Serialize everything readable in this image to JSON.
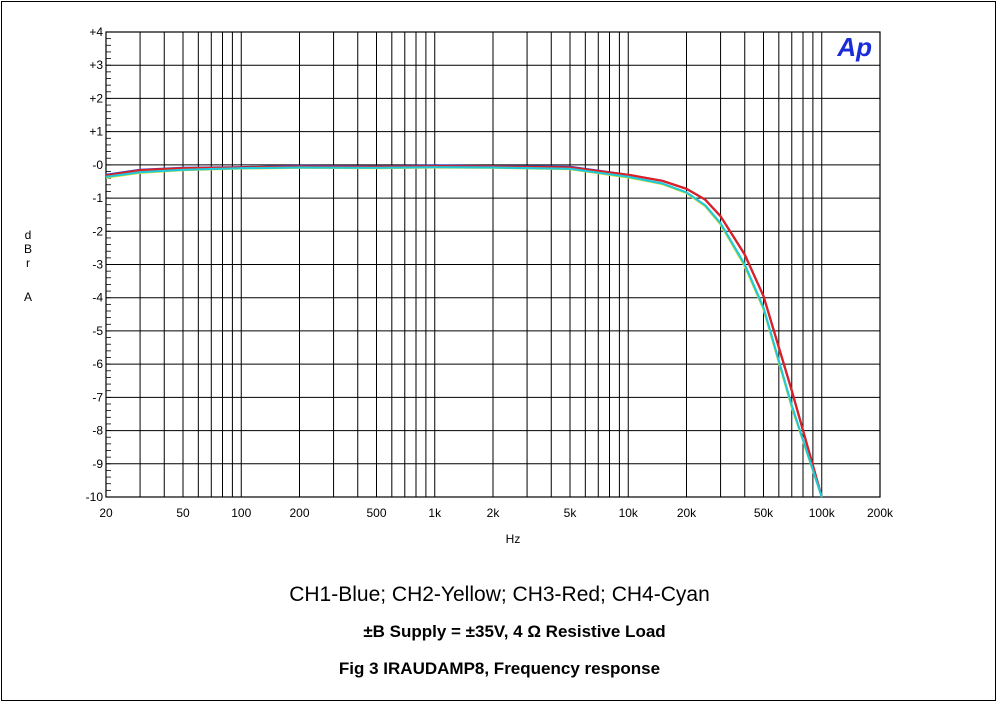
{
  "chart_data": {
    "type": "line",
    "x_scale": "log",
    "xlim": [
      20,
      200000
    ],
    "ylim": [
      -10,
      4
    ],
    "xlabel": "Hz",
    "ylabel_lines": [
      "d",
      "B",
      "r",
      "",
      "A"
    ],
    "x_ticks": [
      {
        "value": 20,
        "label": "20"
      },
      {
        "value": 50,
        "label": "50"
      },
      {
        "value": 100,
        "label": "100"
      },
      {
        "value": 200,
        "label": "200"
      },
      {
        "value": 500,
        "label": "500"
      },
      {
        "value": 1000,
        "label": "1k"
      },
      {
        "value": 2000,
        "label": "2k"
      },
      {
        "value": 5000,
        "label": "5k"
      },
      {
        "value": 10000,
        "label": "10k"
      },
      {
        "value": 20000,
        "label": "20k"
      },
      {
        "value": 50000,
        "label": "50k"
      },
      {
        "value": 100000,
        "label": "100k"
      },
      {
        "value": 200000,
        "label": "200k"
      }
    ],
    "y_ticks": [
      {
        "value": 4,
        "label": "+4"
      },
      {
        "value": 3,
        "label": "+3"
      },
      {
        "value": 2,
        "label": "+2"
      },
      {
        "value": 1,
        "label": "+1"
      },
      {
        "value": 0,
        "label": "-0"
      },
      {
        "value": -1,
        "label": "-1"
      },
      {
        "value": -2,
        "label": "-2"
      },
      {
        "value": -3,
        "label": "-3"
      },
      {
        "value": -4,
        "label": "-4"
      },
      {
        "value": -5,
        "label": "-5"
      },
      {
        "value": -6,
        "label": "-6"
      },
      {
        "value": -7,
        "label": "-7"
      },
      {
        "value": -8,
        "label": "-8"
      },
      {
        "value": -9,
        "label": "-9"
      },
      {
        "value": -10,
        "label": "-10"
      }
    ],
    "grid": true,
    "logo_text": "Ap",
    "series": [
      {
        "color": "#1f3fd6",
        "x": [
          20,
          30,
          50,
          100,
          200,
          500,
          1000,
          2000,
          5000,
          10000,
          15000,
          20000,
          25000,
          30000,
          40000,
          50000,
          70000,
          100000
        ],
        "y": [
          -0.3,
          -0.15,
          -0.09,
          -0.07,
          -0.03,
          -0.05,
          -0.02,
          -0.04,
          -0.06,
          -0.3,
          -0.48,
          -0.72,
          -1.05,
          -1.55,
          -2.7,
          -3.95,
          -6.8,
          -10.0
        ]
      },
      {
        "color": "#e0e030",
        "x": [
          20,
          30,
          50,
          100,
          200,
          500,
          1000,
          2000,
          5000,
          10000,
          15000,
          20000,
          25000,
          30000,
          40000,
          50000,
          70000,
          100000
        ],
        "y": [
          -0.38,
          -0.24,
          -0.16,
          -0.11,
          -0.09,
          -0.1,
          -0.08,
          -0.09,
          -0.13,
          -0.38,
          -0.58,
          -0.85,
          -1.25,
          -1.8,
          -3.05,
          -4.35,
          -7.3,
          -10.0
        ]
      },
      {
        "color": "#e02020",
        "x": [
          20,
          30,
          50,
          100,
          200,
          500,
          1000,
          2000,
          5000,
          10000,
          15000,
          20000,
          25000,
          30000,
          40000,
          50000,
          70000,
          100000
        ],
        "y": [
          -0.32,
          -0.16,
          -0.1,
          -0.08,
          -0.05,
          -0.06,
          -0.04,
          -0.05,
          -0.08,
          -0.3,
          -0.48,
          -0.72,
          -1.05,
          -1.55,
          -2.7,
          -3.95,
          -6.8,
          -10.0
        ]
      },
      {
        "color": "#20c8d8",
        "x": [
          20,
          30,
          50,
          100,
          200,
          500,
          1000,
          2000,
          5000,
          10000,
          15000,
          20000,
          25000,
          30000,
          40000,
          50000,
          70000,
          100000
        ],
        "y": [
          -0.36,
          -0.22,
          -0.15,
          -0.1,
          -0.08,
          -0.09,
          -0.07,
          -0.08,
          -0.12,
          -0.36,
          -0.56,
          -0.83,
          -1.22,
          -1.76,
          -3.0,
          -4.3,
          -7.25,
          -10.0
        ]
      }
    ]
  },
  "caption": {
    "legend": "CH1-Blue; CH2-Yellow; CH3-Red; CH4-Cyan",
    "supply": "±B Supply = ±35V, 4 Ω Resistive Load",
    "figure": "Fig 3  IRAUDAMP8, Frequency response"
  }
}
